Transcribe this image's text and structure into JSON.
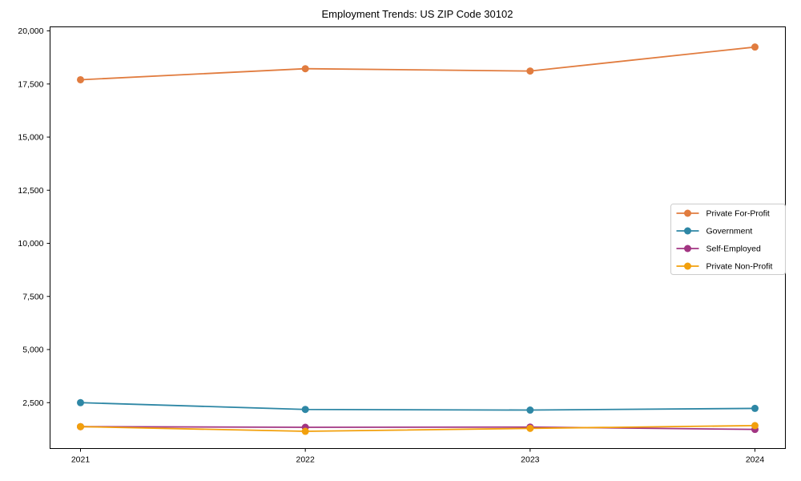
{
  "title": "Employment Trends: US ZIP Code 30102",
  "chart_data": {
    "type": "line",
    "x": [
      2021,
      2022,
      2023,
      2024
    ],
    "x_tick_labels": [
      "2021",
      "2022",
      "2023",
      "2024"
    ],
    "y_ticks": [
      2500,
      5000,
      7500,
      10000,
      12500,
      15000,
      17500,
      20000
    ],
    "y_tick_labels": [
      "2,500",
      "5,000",
      "7,500",
      "10,000",
      "12,500",
      "15,000",
      "17,500",
      "20,000"
    ],
    "ylim": [
      340,
      20190
    ],
    "grid": false,
    "xlabel": "",
    "ylabel": "",
    "legend_position": "center-right",
    "series": [
      {
        "name": "Private For-Profit",
        "color": "#E17C3F",
        "values": [
          17700,
          18220,
          18110,
          19240
        ]
      },
      {
        "name": "Government",
        "color": "#2E87A5",
        "values": [
          2500,
          2180,
          2150,
          2230
        ]
      },
      {
        "name": "Self-Employed",
        "color": "#A23582",
        "values": [
          1370,
          1340,
          1350,
          1240
        ]
      },
      {
        "name": "Private Non-Profit",
        "color": "#F2A00C",
        "values": [
          1370,
          1150,
          1290,
          1420
        ]
      }
    ],
    "axis_color": "#000000",
    "legend_border_color": "#cccccc"
  }
}
